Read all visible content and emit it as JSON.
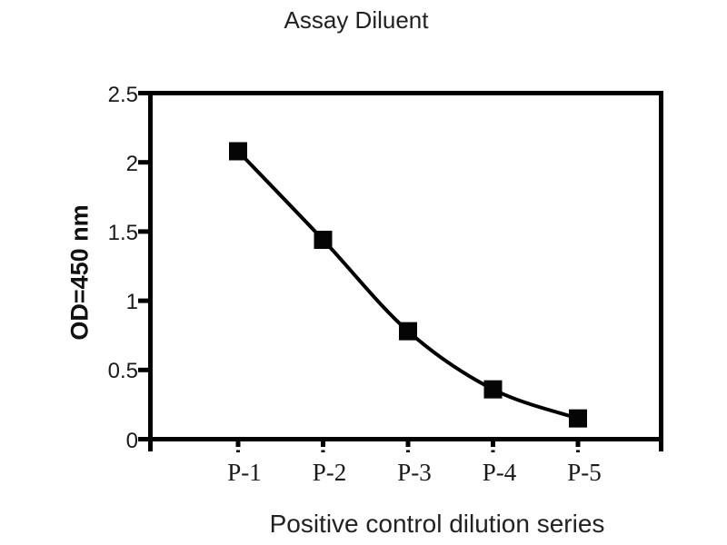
{
  "figure": {
    "background": "#ffffff",
    "text_color": "#1a1a1a"
  },
  "chart_data": {
    "type": "line",
    "title": "Assay Diluent",
    "xlabel": "Positive control dilution series",
    "ylabel": "OD=450 nm",
    "categories": [
      "P-1",
      "P-2",
      "P-3",
      "P-4",
      "P-5"
    ],
    "values": [
      2.08,
      1.44,
      0.78,
      0.36,
      0.15
    ],
    "ylim": [
      0,
      2.5
    ],
    "yticks": [
      0,
      0.5,
      1,
      1.5,
      2,
      2.5
    ],
    "ytick_labels": [
      "0",
      "0.5",
      "1",
      "1.5",
      "2",
      "2.5"
    ],
    "grid": false,
    "legend": "none",
    "marker": "square",
    "line_color": "#000000",
    "marker_color": "#050505",
    "axis_color": "#000000"
  }
}
